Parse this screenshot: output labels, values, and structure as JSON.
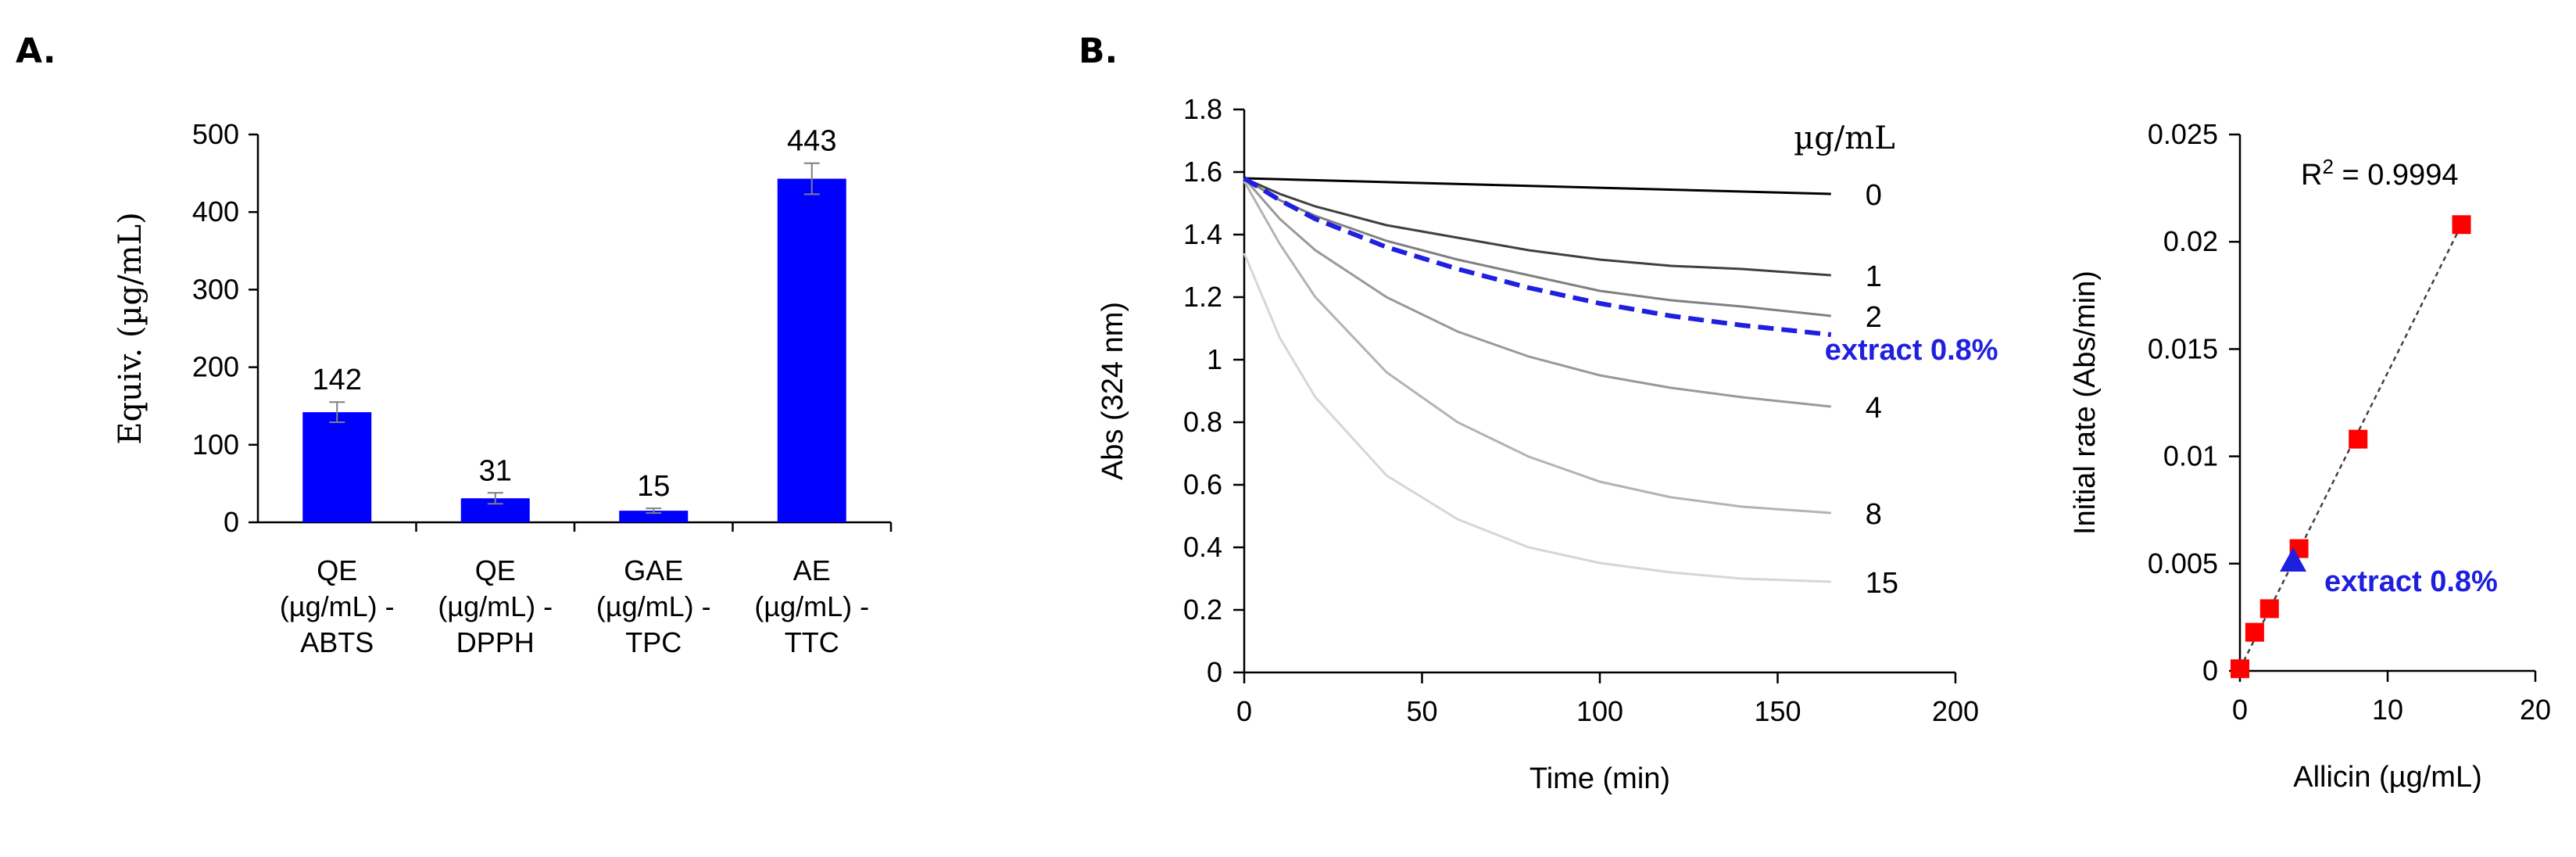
{
  "panel_a": {
    "label": "A."
  },
  "panel_b": {
    "label": "B."
  },
  "chart_data": [
    {
      "id": "equiv",
      "type": "bar",
      "title": "",
      "ylabel": "Equiv. (µg/mL)",
      "xlabel": "",
      "ylim": [
        0,
        500
      ],
      "yticks": [
        0,
        100,
        200,
        300,
        400,
        500
      ],
      "categories": [
        [
          "QE",
          "(µg/mL) -",
          "ABTS"
        ],
        [
          "QE",
          "(µg/mL) -",
          "DPPH"
        ],
        [
          "GAE",
          "(µg/mL) -",
          "TPC"
        ],
        [
          "AE",
          "(µg/mL) -",
          "TTC"
        ]
      ],
      "values": [
        142,
        31,
        15,
        443
      ],
      "errors": [
        13,
        7,
        3,
        20
      ],
      "value_labels": [
        "142",
        "31",
        "15",
        "443"
      ],
      "bar_color": "#0000ff",
      "error_color": "#7f7f7f"
    },
    {
      "id": "kinetics",
      "type": "line",
      "title": "",
      "xlabel": "Time (min)",
      "ylabel": "Abs (324 nm)",
      "xlim": [
        0,
        200
      ],
      "ylim": [
        0,
        1.8
      ],
      "xticks": [
        0,
        50,
        100,
        150,
        200
      ],
      "yticks": [
        0,
        0.2,
        0.4,
        0.6,
        0.8,
        1,
        1.2,
        1.4,
        1.6,
        1.8
      ],
      "legend_title": "µg/mL",
      "series": [
        {
          "name": "0",
          "label": "0",
          "color": "#000000",
          "dashed": false,
          "x": [
            0,
            165
          ],
          "y": [
            1.58,
            1.53
          ]
        },
        {
          "name": "1",
          "label": "1",
          "color": "#404040",
          "dashed": false,
          "x": [
            0,
            10,
            20,
            40,
            60,
            80,
            100,
            120,
            140,
            165
          ],
          "y": [
            1.58,
            1.53,
            1.49,
            1.43,
            1.39,
            1.35,
            1.32,
            1.3,
            1.29,
            1.27
          ]
        },
        {
          "name": "2",
          "label": "2",
          "color": "#808080",
          "dashed": false,
          "x": [
            0,
            10,
            20,
            40,
            60,
            80,
            100,
            120,
            140,
            165
          ],
          "y": [
            1.58,
            1.51,
            1.46,
            1.38,
            1.32,
            1.27,
            1.22,
            1.19,
            1.17,
            1.14
          ]
        },
        {
          "name": "4",
          "label": "4",
          "color": "#999999",
          "dashed": false,
          "x": [
            0,
            10,
            20,
            40,
            60,
            80,
            100,
            120,
            140,
            165
          ],
          "y": [
            1.58,
            1.45,
            1.35,
            1.2,
            1.09,
            1.01,
            0.95,
            0.91,
            0.88,
            0.85
          ]
        },
        {
          "name": "8",
          "label": "8",
          "color": "#b3b3b3",
          "dashed": false,
          "x": [
            0,
            10,
            20,
            40,
            60,
            80,
            100,
            120,
            140,
            165
          ],
          "y": [
            1.57,
            1.37,
            1.2,
            0.96,
            0.8,
            0.69,
            0.61,
            0.56,
            0.53,
            0.51
          ]
        },
        {
          "name": "15",
          "label": "15",
          "color": "#d6d6d6",
          "dashed": false,
          "x": [
            0,
            10,
            20,
            40,
            60,
            80,
            100,
            120,
            140,
            165
          ],
          "y": [
            1.34,
            1.07,
            0.88,
            0.63,
            0.49,
            0.4,
            0.35,
            0.32,
            0.3,
            0.29
          ]
        },
        {
          "name": "extract 0.8%",
          "label": "extract 0.8%",
          "color": "#1f1fe0",
          "dashed": true,
          "x": [
            0,
            10,
            20,
            40,
            60,
            80,
            100,
            120,
            140,
            165
          ],
          "y": [
            1.58,
            1.51,
            1.45,
            1.36,
            1.29,
            1.23,
            1.18,
            1.14,
            1.11,
            1.08
          ]
        }
      ]
    },
    {
      "id": "calibration",
      "type": "scatter",
      "title": "",
      "xlabel": "Allicin (µg/mL)",
      "ylabel": "Initial rate (Abs/min)",
      "xlim": [
        0,
        20
      ],
      "ylim": [
        0,
        0.025
      ],
      "xticks": [
        0,
        10,
        20
      ],
      "yticks": [
        0,
        0.005,
        0.01,
        0.015,
        0.02,
        0.025
      ],
      "points": {
        "x": [
          0,
          1,
          2,
          4,
          8,
          15
        ],
        "y": [
          0.0001,
          0.0018,
          0.0029,
          0.0057,
          0.0108,
          0.0208
        ],
        "color": "#ff0000"
      },
      "extract_point": {
        "label": "extract 0.8%",
        "x": 3.6,
        "y": 0.0051,
        "color": "#1f1fe0"
      },
      "trendline": {
        "x": [
          0,
          15
        ],
        "y": [
          0.0001,
          0.0208
        ],
        "dashed": true
      },
      "annotation": {
        "prefix": "R",
        "sup": "2",
        "rest": " = 0.9994"
      }
    }
  ]
}
